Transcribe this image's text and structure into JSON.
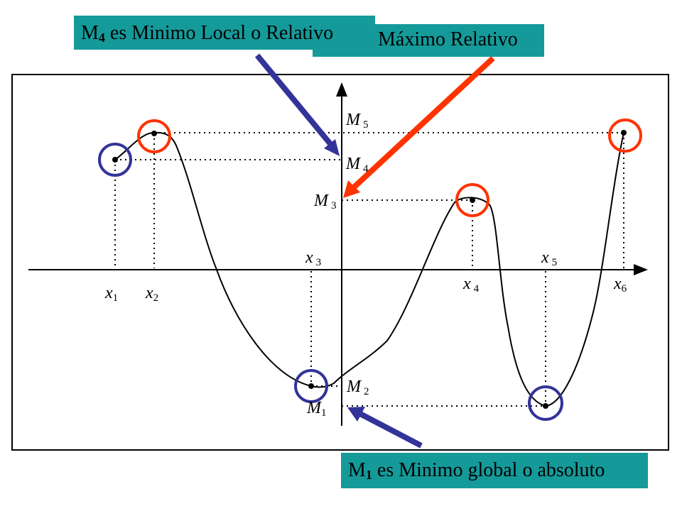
{
  "banners": {
    "m4": {
      "prefix": "M",
      "index": "4",
      "text": " es Minimo Local o Relativo"
    },
    "m3": {
      "text": "Máximo Relativo"
    },
    "m1": {
      "prefix": "M",
      "index": "1",
      "text": " es Minimo global o absoluto"
    }
  },
  "labels": {
    "x1": {
      "base": "x",
      "index": "1"
    },
    "x2": {
      "base": "x",
      "index": "2"
    },
    "x3": {
      "base": "x",
      "index": "3"
    },
    "x4": {
      "base": "x",
      "index": "4"
    },
    "x5": {
      "base": "x",
      "index": "5"
    },
    "x6": {
      "base": "x",
      "index": "6"
    },
    "M1": {
      "base": "M",
      "index": "1"
    },
    "M2": {
      "base": "M",
      "index": "2"
    },
    "M3": {
      "base": "M",
      "index": "3"
    },
    "M4": {
      "base": "M",
      "index": "4"
    },
    "M5": {
      "base": "M",
      "index": "5"
    }
  },
  "colors": {
    "banner_bg": "#159a9a",
    "minimum_marker": "#333399",
    "maximum_marker": "#ff3300",
    "curve": "#000000"
  }
}
